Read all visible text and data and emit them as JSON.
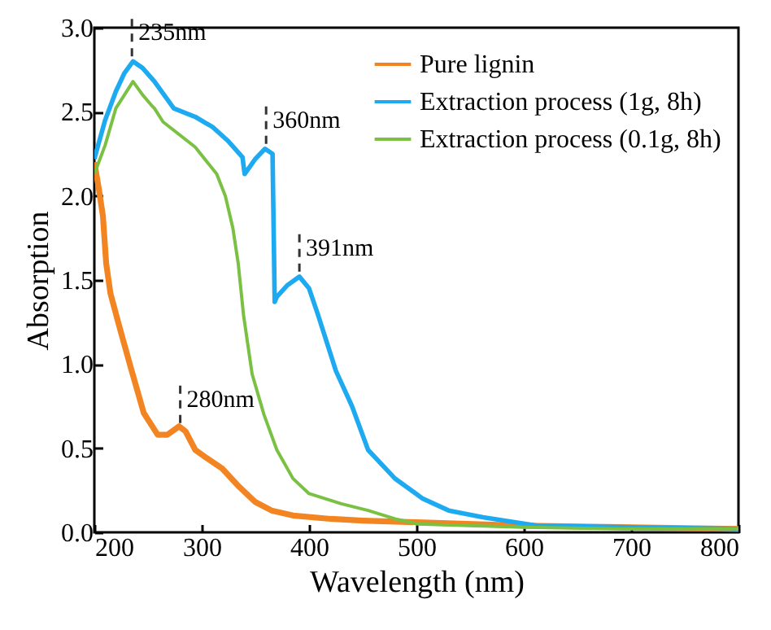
{
  "chart_data": {
    "type": "line",
    "xlabel": "Wavelength (nm)",
    "ylabel": "Absorption",
    "xlim": [
      200,
      800
    ],
    "xticks": [
      200,
      300,
      400,
      500,
      600,
      700,
      800
    ],
    "ylim": [
      0,
      3
    ],
    "yticks": [
      {
        "value": 0,
        "label": "0.0"
      },
      {
        "value": 0.5,
        "label": "0.5"
      },
      {
        "value": 1,
        "label": "1.0"
      },
      {
        "value": 1.5,
        "label": "1.5"
      },
      {
        "value": 2,
        "label": "2.0"
      },
      {
        "value": 2.5,
        "label": "2.5"
      },
      {
        "value": 3,
        "label": "3.0"
      }
    ],
    "grid": false,
    "legend": "top right",
    "line_style": "solid",
    "annotations": [
      {
        "text": "235nm",
        "x": 235,
        "y": 2.8
      },
      {
        "text": "280nm",
        "x": 280,
        "y": 0.62
      },
      {
        "text": "360nm",
        "x": 360,
        "y": 2.28
      },
      {
        "text": "391nm",
        "x": 391,
        "y": 1.52
      }
    ],
    "series": [
      {
        "name": "Pure lignin",
        "color": "#f28522",
        "x": [
          200,
          204,
          208,
          211,
          215,
          223,
          233,
          246,
          259,
          268,
          279,
          285,
          294,
          305,
          319,
          335,
          350,
          365,
          385,
          420,
          450,
          500,
          600,
          700,
          800
        ],
        "values": [
          2.2,
          2.05,
          1.88,
          1.6,
          1.42,
          1.23,
          1.0,
          0.71,
          0.58,
          0.58,
          0.63,
          0.6,
          0.49,
          0.44,
          0.38,
          0.27,
          0.18,
          0.13,
          0.1,
          0.08,
          0.07,
          0.06,
          0.04,
          0.03,
          0.02
        ]
      },
      {
        "name": "Extraction process (1g, 8h)",
        "color": "#1eaaf1",
        "x": [
          200,
          210,
          220,
          228,
          236,
          245,
          256,
          265,
          274,
          294,
          310,
          324,
          338,
          340,
          350,
          359,
          366,
          368,
          370,
          380,
          391,
          400,
          408,
          418,
          425,
          430,
          440,
          455,
          480,
          506,
          530,
          562,
          612,
          700,
          800
        ],
        "values": [
          2.22,
          2.45,
          2.62,
          2.73,
          2.8,
          2.76,
          2.68,
          2.6,
          2.52,
          2.47,
          2.41,
          2.33,
          2.23,
          2.13,
          2.22,
          2.28,
          2.25,
          1.37,
          1.4,
          1.47,
          1.52,
          1.45,
          1.3,
          1.1,
          0.96,
          0.89,
          0.75,
          0.49,
          0.32,
          0.2,
          0.13,
          0.09,
          0.04,
          0.03,
          0.02
        ]
      },
      {
        "name": "Extraction process (0.1g, 8h)",
        "color": "#7ac143",
        "x": [
          200,
          210,
          220,
          228,
          236,
          245,
          253,
          256,
          264,
          280,
          294,
          314,
          322,
          329,
          334,
          339,
          347,
          358,
          370,
          385,
          400,
          430,
          455,
          480,
          501,
          550,
          600,
          700,
          800
        ],
        "values": [
          2.13,
          2.3,
          2.52,
          2.6,
          2.68,
          2.6,
          2.54,
          2.52,
          2.44,
          2.36,
          2.29,
          2.13,
          2.0,
          1.81,
          1.6,
          1.29,
          0.94,
          0.7,
          0.49,
          0.32,
          0.23,
          0.17,
          0.13,
          0.08,
          0.05,
          0.04,
          0.03,
          0.02,
          0.02
        ]
      }
    ]
  }
}
